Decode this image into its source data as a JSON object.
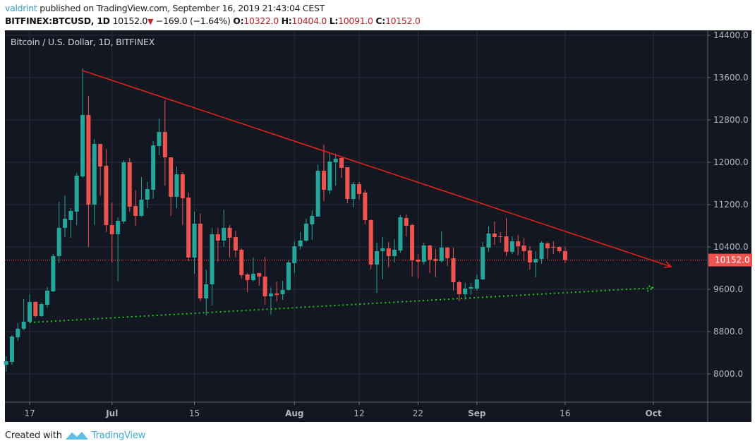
{
  "header": {
    "author": "valdrint",
    "published_text": "published on TradingView.com, September 16, 2019 21:43:04 CEST",
    "symbol": "BITFINEX:BTCUSD, 1D",
    "last": "10152.0",
    "change": "−169.0 (−1.64%)",
    "o_label": "O:",
    "o": "10322.0",
    "h_label": "H:",
    "h": "10404.0",
    "l_label": "L:",
    "l": "10091.0",
    "c_label": "C:",
    "c": "10152.0",
    "direction_icon": "triangle-down-icon"
  },
  "legend": "Bitcoin / U.S. Dollar, 1D, BITFINEX",
  "footer": {
    "created_with": "Created with",
    "brand": "TradingView",
    "logo_icon": "tradingview-logo-icon"
  },
  "colors": {
    "background": "#131722",
    "up": "#26a69a",
    "down": "#ef5350",
    "grid": "#2a2e39",
    "resistance_line": "#e0201b",
    "support_line": "#22c41e",
    "price_label": "#ef5350"
  },
  "chart_data": {
    "type": "candlestick",
    "title": "Bitcoin / U.S. Dollar, 1D, BITFINEX",
    "ylim": [
      7800,
      14560
    ],
    "xlim": [
      "2019-06-12",
      "2019-10-20"
    ],
    "grid": true,
    "y_ticks": [
      14400,
      13600,
      12800,
      12000,
      11200,
      10400,
      9600,
      8800,
      8000
    ],
    "y_tick_labels": [
      "14400.0",
      "13600.0",
      "12800.0",
      "12000.0",
      "11200.0",
      "10400.0",
      "9600.0",
      "8800.0",
      "8000.0"
    ],
    "x_ticks": [
      {
        "date": "2019-06-17",
        "label": "17"
      },
      {
        "date": "2019-07-01",
        "label": "Jul"
      },
      {
        "date": "2019-07-15",
        "label": "15"
      },
      {
        "date": "2019-08-01",
        "label": "Aug"
      },
      {
        "date": "2019-08-12",
        "label": "12"
      },
      {
        "date": "2019-08-22",
        "label": "22"
      },
      {
        "date": "2019-09-01",
        "label": "Sep"
      },
      {
        "date": "2019-09-16",
        "label": "16"
      },
      {
        "date": "2019-10-01",
        "label": "Oct"
      }
    ],
    "current_price": 10152.0,
    "current_price_label": "10152.0",
    "columns": [
      "date",
      "open",
      "high",
      "low",
      "close"
    ],
    "candles": [
      [
        "2019-06-13",
        8173,
        8333,
        8040,
        8240
      ],
      [
        "2019-06-14",
        8227,
        8733,
        8173,
        8707
      ],
      [
        "2019-06-15",
        8693,
        8960,
        8627,
        8853
      ],
      [
        "2019-06-16",
        8853,
        9413,
        8827,
        8987
      ],
      [
        "2019-06-17",
        8987,
        9507,
        8973,
        9360
      ],
      [
        "2019-06-18",
        9360,
        9373,
        9067,
        9093
      ],
      [
        "2019-06-19",
        9093,
        9347,
        9080,
        9320
      ],
      [
        "2019-06-20",
        9307,
        9640,
        9253,
        9573
      ],
      [
        "2019-06-21",
        9560,
        10267,
        9547,
        10227
      ],
      [
        "2019-06-22",
        10227,
        11253,
        10093,
        10760
      ],
      [
        "2019-06-23",
        10760,
        11373,
        10587,
        10933
      ],
      [
        "2019-06-24",
        10907,
        11133,
        10573,
        11080
      ],
      [
        "2019-06-25",
        11067,
        11800,
        10813,
        11747
      ],
      [
        "2019-06-26",
        11733,
        13773,
        11707,
        12893
      ],
      [
        "2019-06-27",
        12893,
        13253,
        10400,
        11200
      ],
      [
        "2019-06-28",
        11200,
        12440,
        10813,
        12347
      ],
      [
        "2019-06-29",
        12347,
        12347,
        11373,
        11920
      ],
      [
        "2019-06-30",
        11933,
        12253,
        10680,
        10813
      ],
      [
        "2019-07-01",
        10813,
        11240,
        10107,
        10640
      ],
      [
        "2019-07-02",
        10640,
        10960,
        9747,
        10893
      ],
      [
        "2019-07-03",
        10880,
        12040,
        10840,
        12000
      ],
      [
        "2019-07-04",
        12000,
        12080,
        11067,
        11160
      ],
      [
        "2019-07-05",
        11173,
        11467,
        10800,
        10987
      ],
      [
        "2019-07-06",
        10987,
        11720,
        10973,
        11293
      ],
      [
        "2019-07-07",
        11293,
        11627,
        11133,
        11493
      ],
      [
        "2019-07-08",
        11480,
        12400,
        11307,
        12320
      ],
      [
        "2019-07-09",
        12307,
        12827,
        12133,
        12573
      ],
      [
        "2019-07-10",
        12573,
        13173,
        11560,
        12093
      ],
      [
        "2019-07-11",
        12093,
        12093,
        10987,
        11347
      ],
      [
        "2019-07-12",
        11347,
        11920,
        11133,
        11773
      ],
      [
        "2019-07-13",
        11773,
        11813,
        10813,
        11320
      ],
      [
        "2019-07-14",
        11333,
        11427,
        10133,
        10200
      ],
      [
        "2019-07-15",
        10200,
        11067,
        9893,
        10840
      ],
      [
        "2019-07-16",
        10840,
        11027,
        9373,
        9427
      ],
      [
        "2019-07-17",
        9427,
        9973,
        9107,
        9693
      ],
      [
        "2019-07-18",
        9693,
        10760,
        9293,
        10640
      ],
      [
        "2019-07-19",
        10640,
        10760,
        10120,
        10520
      ],
      [
        "2019-07-20",
        10520,
        11107,
        10400,
        10760
      ],
      [
        "2019-07-21",
        10760,
        10813,
        10200,
        10573
      ],
      [
        "2019-07-22",
        10587,
        10707,
        10200,
        10333
      ],
      [
        "2019-07-23",
        10347,
        10373,
        9800,
        9867
      ],
      [
        "2019-07-24",
        9880,
        9907,
        9547,
        9773
      ],
      [
        "2019-07-25",
        9773,
        10200,
        9747,
        9893
      ],
      [
        "2019-07-26",
        9907,
        9907,
        9667,
        9840
      ],
      [
        "2019-07-27",
        9840,
        10213,
        9307,
        9467
      ],
      [
        "2019-07-28",
        9467,
        9640,
        9120,
        9520
      ],
      [
        "2019-07-29",
        9520,
        9747,
        9373,
        9493
      ],
      [
        "2019-07-30",
        9507,
        9760,
        9400,
        9587
      ],
      [
        "2019-07-31",
        9587,
        10147,
        9573,
        10107
      ],
      [
        "2019-08-01",
        10093,
        10507,
        9907,
        10413
      ],
      [
        "2019-08-02",
        10413,
        10680,
        10347,
        10520
      ],
      [
        "2019-08-03",
        10520,
        10933,
        10493,
        10840
      ],
      [
        "2019-08-04",
        10827,
        11093,
        10533,
        10987
      ],
      [
        "2019-08-05",
        10973,
        11960,
        10973,
        11840
      ],
      [
        "2019-08-06",
        11840,
        12333,
        11267,
        11480
      ],
      [
        "2019-08-07",
        11467,
        12160,
        11400,
        12013
      ],
      [
        "2019-08-08",
        12000,
        12160,
        11560,
        12067
      ],
      [
        "2019-08-09",
        12080,
        12107,
        11707,
        11893
      ],
      [
        "2019-08-10",
        11907,
        11907,
        11227,
        11307
      ],
      [
        "2019-08-11",
        11307,
        11627,
        11147,
        11587
      ],
      [
        "2019-08-12",
        11587,
        11627,
        11293,
        11400
      ],
      [
        "2019-08-13",
        11427,
        11480,
        10827,
        10907
      ],
      [
        "2019-08-14",
        10907,
        10920,
        9973,
        10067
      ],
      [
        "2019-08-15",
        10067,
        10480,
        9533,
        10320
      ],
      [
        "2019-08-16",
        10320,
        10587,
        9787,
        10373
      ],
      [
        "2019-08-17",
        10373,
        10493,
        10013,
        10227
      ],
      [
        "2019-08-18",
        10227,
        10547,
        10107,
        10347
      ],
      [
        "2019-08-19",
        10333,
        11000,
        10293,
        10960
      ],
      [
        "2019-08-20",
        10947,
        11013,
        10600,
        10800
      ],
      [
        "2019-08-21",
        10813,
        10840,
        9840,
        10147
      ],
      [
        "2019-08-22",
        10160,
        10267,
        9800,
        10120
      ],
      [
        "2019-08-23",
        10120,
        10480,
        10067,
        10427
      ],
      [
        "2019-08-24",
        10427,
        10440,
        9907,
        10160
      ],
      [
        "2019-08-25",
        10173,
        10360,
        9827,
        10133
      ],
      [
        "2019-08-26",
        10133,
        10693,
        10107,
        10387
      ],
      [
        "2019-08-27",
        10387,
        10400,
        10040,
        10187
      ],
      [
        "2019-08-28",
        10187,
        10387,
        9573,
        9733
      ],
      [
        "2019-08-29",
        9733,
        9760,
        9373,
        9507
      ],
      [
        "2019-08-30",
        9507,
        9720,
        9400,
        9613
      ],
      [
        "2019-08-31",
        9613,
        9720,
        9493,
        9640
      ],
      [
        "2019-09-01",
        9613,
        9880,
        9573,
        9787
      ],
      [
        "2019-09-02",
        9787,
        10493,
        9773,
        10400
      ],
      [
        "2019-09-03",
        10387,
        10787,
        10307,
        10653
      ],
      [
        "2019-09-04",
        10653,
        10880,
        10440,
        10587
      ],
      [
        "2019-09-05",
        10600,
        10680,
        10480,
        10587
      ],
      [
        "2019-09-06",
        10600,
        10947,
        10227,
        10307
      ],
      [
        "2019-09-07",
        10307,
        10600,
        10267,
        10507
      ],
      [
        "2019-09-08",
        10507,
        10627,
        10240,
        10413
      ],
      [
        "2019-09-09",
        10427,
        10573,
        10133,
        10320
      ],
      [
        "2019-09-10",
        10333,
        10413,
        9973,
        10107
      ],
      [
        "2019-09-11",
        10107,
        10320,
        9827,
        10173
      ],
      [
        "2019-09-12",
        10173,
        10507,
        10080,
        10480
      ],
      [
        "2019-09-13",
        10467,
        10493,
        10173,
        10373
      ],
      [
        "2019-09-14",
        10400,
        10507,
        10267,
        10387
      ],
      [
        "2019-09-15",
        10400,
        10413,
        10280,
        10320
      ],
      [
        "2019-09-16",
        10322,
        10404,
        10091,
        10152
      ]
    ],
    "annotations": [
      {
        "type": "trend-line",
        "style": "solid",
        "arrow": true,
        "color": "#e0201b",
        "from": [
          "2019-06-26",
          13733
        ],
        "to": [
          "2019-10-04",
          10027
        ]
      },
      {
        "type": "trend-line",
        "style": "dotted",
        "arrow": true,
        "color": "#22c41e",
        "from": [
          "2019-06-17",
          8973
        ],
        "to": [
          "2019-10-01",
          9627
        ]
      }
    ]
  }
}
